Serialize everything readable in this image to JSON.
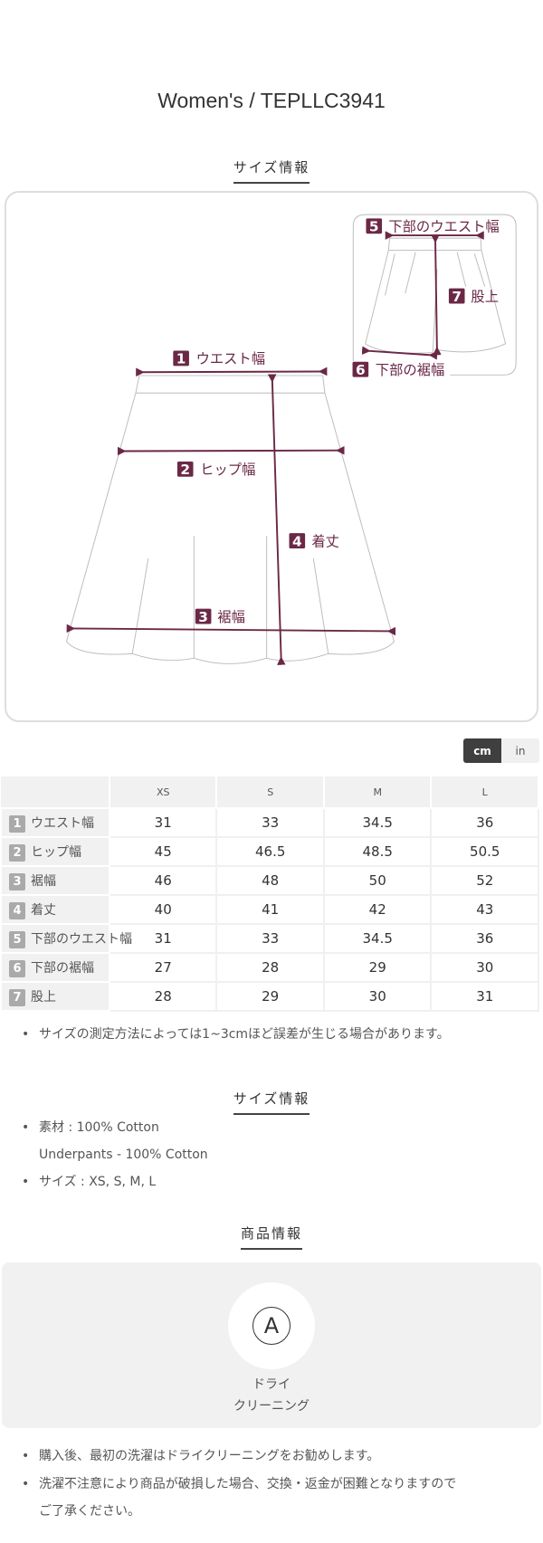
{
  "title": "Women's / TEPLLC3941",
  "size_section": {
    "heading": "サイズ情報"
  },
  "diagram": {
    "accent_color": "#6b2846",
    "labels": [
      {
        "num": "1",
        "text": "ウエスト幅"
      },
      {
        "num": "2",
        "text": "ヒップ幅"
      },
      {
        "num": "3",
        "text": "裾幅"
      },
      {
        "num": "4",
        "text": "着丈"
      },
      {
        "num": "5",
        "text": "下部のウエスト幅"
      },
      {
        "num": "6",
        "text": "下部の裾幅"
      },
      {
        "num": "7",
        "text": "股上"
      }
    ]
  },
  "unit_toggle": {
    "options": [
      "cm",
      "in"
    ],
    "selected": "cm"
  },
  "table": {
    "columns": [
      "XS",
      "S",
      "M",
      "L"
    ],
    "rows": [
      {
        "num": "1",
        "label": "ウエスト幅",
        "values": [
          "31",
          "33",
          "34.5",
          "36"
        ]
      },
      {
        "num": "2",
        "label": "ヒップ幅",
        "values": [
          "45",
          "46.5",
          "48.5",
          "50.5"
        ]
      },
      {
        "num": "3",
        "label": "裾幅",
        "values": [
          "46",
          "48",
          "50",
          "52"
        ]
      },
      {
        "num": "4",
        "label": "着丈",
        "values": [
          "40",
          "41",
          "42",
          "43"
        ]
      },
      {
        "num": "5",
        "label": "下部のウエスト幅",
        "values": [
          "31",
          "33",
          "34.5",
          "36"
        ]
      },
      {
        "num": "6",
        "label": "下部の裾幅",
        "values": [
          "27",
          "28",
          "29",
          "30"
        ]
      },
      {
        "num": "7",
        "label": "股上",
        "values": [
          "28",
          "29",
          "30",
          "31"
        ]
      }
    ]
  },
  "measure_note": "サイズの測定方法によっては1~3cmほど誤差が生じる場合があります。",
  "material_section": {
    "heading": "サイズ情報",
    "material": "素材 : 100% Cotton",
    "material_2": "Underpants - 100% Cotton",
    "sizes": "サイズ : XS, S, M, L"
  },
  "product_section": {
    "heading": "商品情報",
    "care_icon": "dry-clean-A-circle",
    "care_symbol": "A",
    "care_line1": "ドライ",
    "care_line2": "クリーニング",
    "notes": [
      "購入後、最初の洗濯はドライクリーニングをお勧めします。",
      "洗濯不注意により商品が破損した場合、交換・返金が困難となりますので",
      "ご了承ください。"
    ]
  }
}
